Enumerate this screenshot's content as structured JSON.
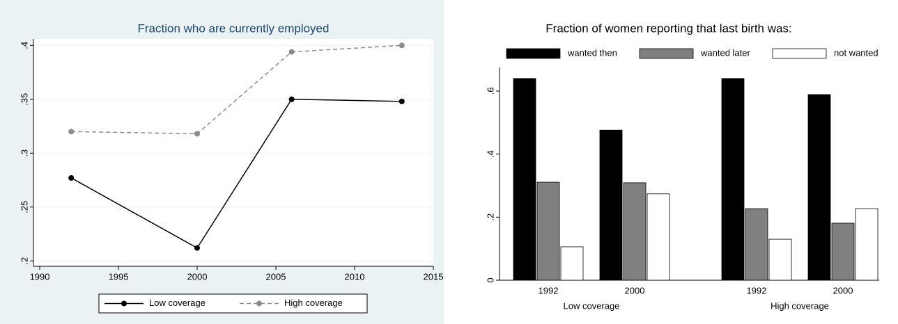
{
  "chart_data": [
    {
      "type": "line",
      "title": "Fraction who are currently employed",
      "x": [
        1992,
        2000,
        2006,
        2013
      ],
      "series": [
        {
          "name": "Low coverage",
          "color": "#000000",
          "dash": false,
          "values": [
            0.277,
            0.212,
            0.35,
            0.348
          ]
        },
        {
          "name": "High coverage",
          "color": "#8c8c8c",
          "dash": true,
          "values": [
            0.32,
            0.318,
            0.394,
            0.4
          ]
        }
      ],
      "xlim": [
        1989.6,
        2015
      ],
      "xticks": [
        1990,
        1995,
        2000,
        2005,
        2010,
        2015
      ],
      "ylim": [
        0.195,
        0.406
      ],
      "yticks": [
        {
          "value": 0.2,
          "label": ".2"
        },
        {
          "value": 0.25,
          "label": ".25"
        },
        {
          "value": 0.3,
          "label": ".3"
        },
        {
          "value": 0.35,
          "label": ".35"
        },
        {
          "value": 0.4,
          "label": ".4"
        }
      ],
      "grid": true,
      "legend": "bottom"
    },
    {
      "type": "bar",
      "title": "Fraction of women reporting that last birth was:",
      "categories": [
        "1992",
        "2000",
        "1992",
        "2000"
      ],
      "groups": [
        "Low coverage",
        "High coverage"
      ],
      "series": [
        {
          "name": "wanted then",
          "color": "#000000",
          "values": [
            0.64,
            0.476,
            0.64,
            0.589
          ]
        },
        {
          "name": "wanted later",
          "color": "#808080",
          "values": [
            0.311,
            0.309,
            0.227,
            0.181
          ]
        },
        {
          "name": "not wanted",
          "color": "#ffffff",
          "values": [
            0.106,
            0.274,
            0.13,
            0.227
          ]
        }
      ],
      "ylim": [
        0,
        0.675
      ],
      "yticks": [
        0,
        {
          "value": 0.2,
          "label": ".2"
        },
        {
          "value": 0.4,
          "label": ".4"
        },
        {
          "value": 0.6,
          "label": ".6"
        }
      ],
      "grid": false,
      "legend": "top"
    }
  ]
}
